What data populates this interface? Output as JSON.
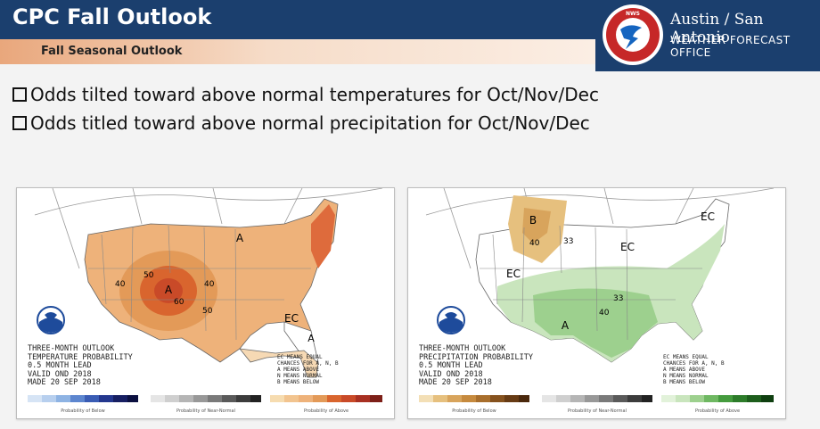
{
  "header": {
    "title": "CPC Fall Outlook",
    "subtitle": "Fall Seasonal Outlook",
    "office_name": "Austin / San Antonio",
    "office_sub": "WEATHER FORECAST OFFICE",
    "logo_text": "NATIONAL WEATHER SERVICE"
  },
  "bullets": [
    "Odds tilted toward above normal temperatures for Oct/Nov/Dec",
    "Odds titled toward above normal precipitation for Oct/Nov/Dec"
  ],
  "temp_map": {
    "caption": [
      "THREE-MONTH OUTLOOK",
      "TEMPERATURE PROBABILITY",
      "0.5 MONTH LEAD",
      "VALID OND 2018",
      "MADE 20 SEP 2018"
    ],
    "labels": {
      "a1": "A",
      "a2": "A",
      "a3": "A",
      "n50a": "50",
      "n50b": "50",
      "n40a": "40",
      "n40b": "40",
      "n60": "60",
      "ec": "EC"
    },
    "note": [
      "EC MEANS EQUAL",
      "CHANCES FOR A, N, B",
      "A MEANS ABOVE",
      "N MEANS NORMAL",
      "B MEANS BELOW"
    ],
    "legend_captions": [
      "Probability of Below",
      "Probability of Near-Normal",
      "Probability of Above"
    ],
    "colors": {
      "above_light": "#f2c48f",
      "above_mid": "#e39a58",
      "above_dark": "#d9652e",
      "above_center": "#c94a28"
    }
  },
  "precip_map": {
    "caption": [
      "THREE-MONTH OUTLOOK",
      "PRECIPITATION PROBABILITY",
      "0.5 MONTH LEAD",
      "VALID OND 2018",
      "MADE 20 SEP 2018"
    ],
    "labels": {
      "b": "B",
      "n40": "40",
      "n33a": "33",
      "n33b": "33",
      "ec1": "EC",
      "ec2": "EC",
      "ec3": "EC",
      "a": "A",
      "n40b": "40"
    },
    "note": [
      "EC MEANS EQUAL",
      "CHANCES FOR A, N, B",
      "A MEANS ABOVE",
      "N MEANS NORMAL",
      "B MEANS BELOW"
    ],
    "legend_captions": [
      "Probability of Below",
      "Probability of Near-Normal",
      "Probability of Above"
    ],
    "colors": {
      "below": "#e6c07e",
      "above_light": "#c9e5bd",
      "above_mid": "#9dd08e"
    }
  }
}
